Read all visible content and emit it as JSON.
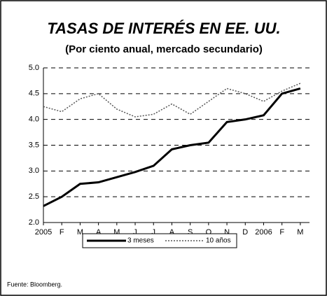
{
  "chart_data": {
    "type": "line",
    "title": "TASAS DE INTERÉS EN EE. UU.",
    "subtitle": "(Por ciento anual, mercado secundario)",
    "categories": [
      "2005",
      "F",
      "M",
      "A",
      "M",
      "J",
      "J",
      "A",
      "S",
      "O",
      "N",
      "D",
      "2006",
      "F",
      "M"
    ],
    "series": [
      {
        "name": "3 meses",
        "color": "#000000",
        "values": [
          2.32,
          2.5,
          2.75,
          2.78,
          2.88,
          2.98,
          3.1,
          3.42,
          3.5,
          3.55,
          3.95,
          4.0,
          4.08,
          4.5,
          4.6
        ]
      },
      {
        "name": "10 años",
        "color": "#555555",
        "values": [
          4.25,
          4.15,
          4.4,
          4.5,
          4.2,
          4.05,
          4.1,
          4.3,
          4.1,
          4.35,
          4.6,
          4.5,
          4.35,
          4.55,
          4.7
        ]
      }
    ],
    "ylim": [
      2,
      5
    ],
    "yticks": [
      {
        "value": 2,
        "label": "2.0"
      },
      2.5,
      {
        "value": 3,
        "label": "3.0"
      },
      3.5,
      {
        "value": 4,
        "label": "4.0"
      },
      4.5,
      {
        "value": 5,
        "label": "5.0"
      }
    ],
    "grid": true,
    "source": "Fuente: Bloomberg."
  }
}
